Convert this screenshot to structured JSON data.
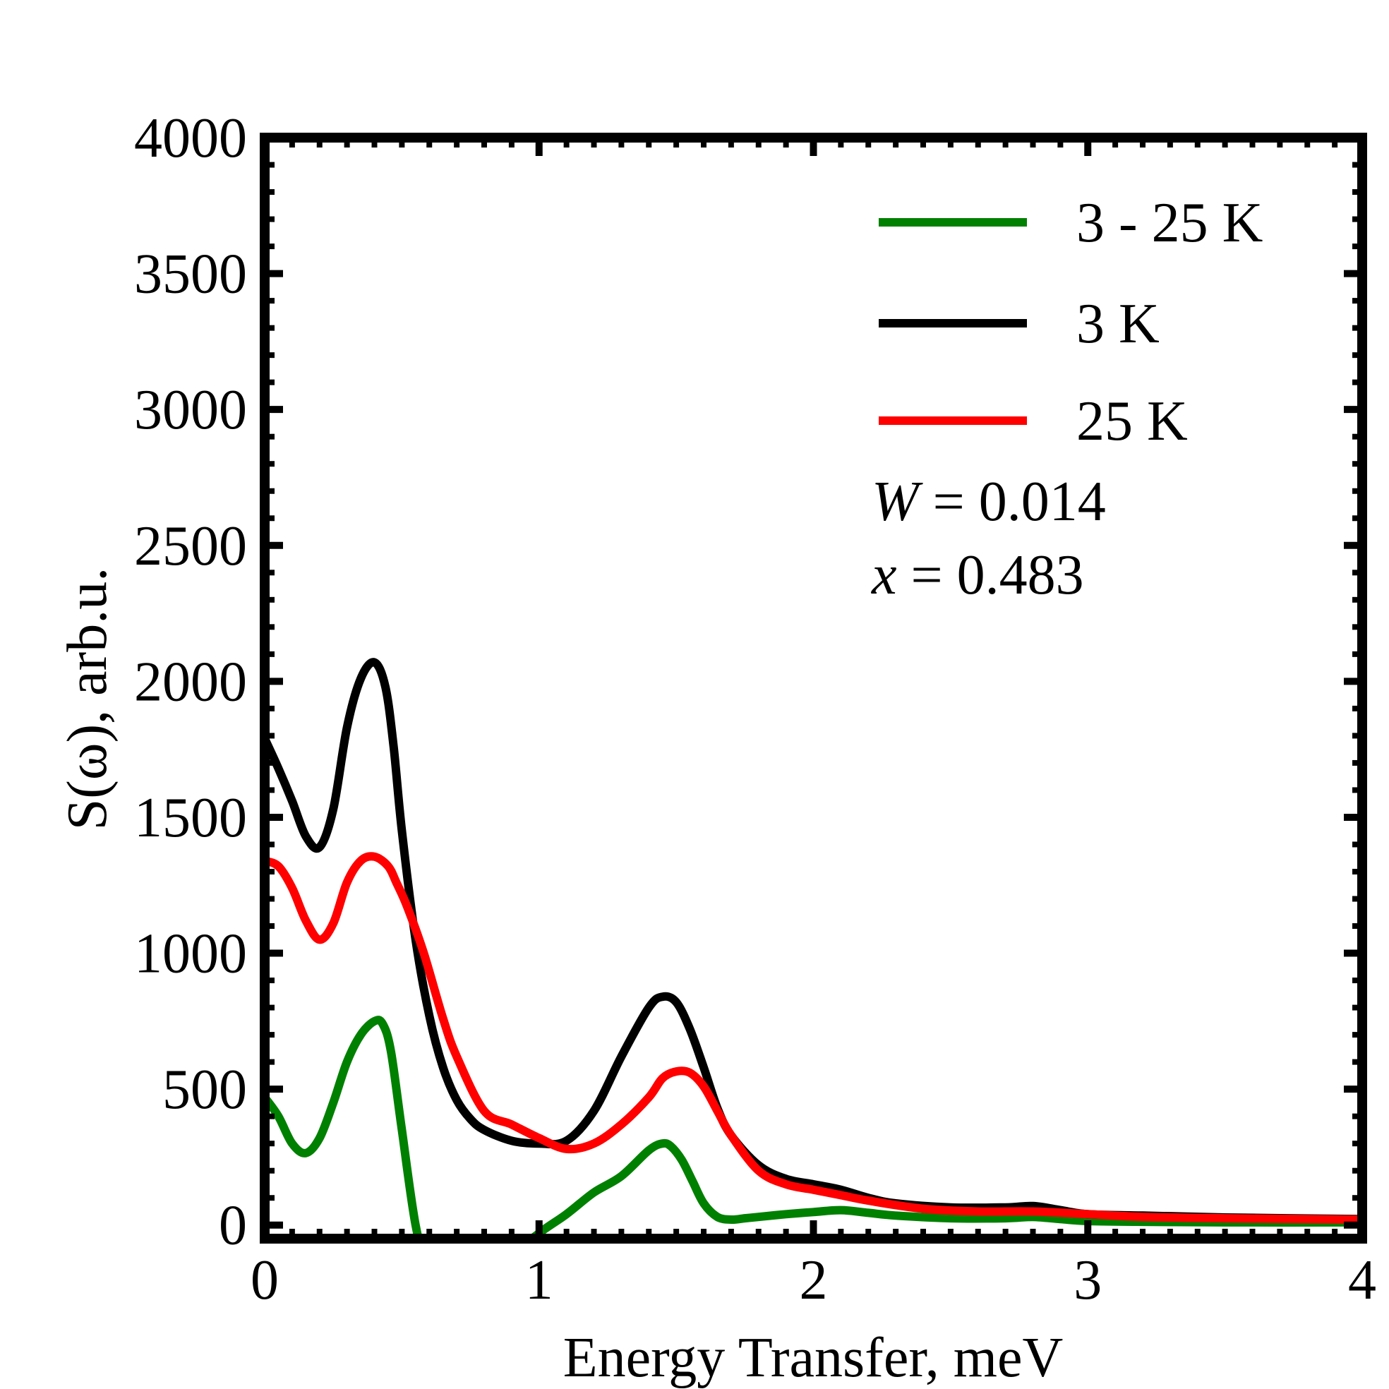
{
  "chart_data": {
    "type": "line",
    "xlabel": "Energy Transfer, meV",
    "ylabel": "S(ω), arb.u.",
    "xlim": [
      0,
      4
    ],
    "ylim": [
      -50,
      4000
    ],
    "x_ticks": [
      "0",
      "1",
      "2",
      "3",
      "4"
    ],
    "y_ticks": [
      "0",
      "500",
      "1000",
      "1500",
      "2000",
      "2500",
      "3000",
      "3500",
      "4000"
    ],
    "grid": false,
    "legend_position": "top-right",
    "annotations": {
      "w_label": "W",
      "w_value": " = 0.014",
      "x_label": "x",
      "x_value": " = 0.483"
    },
    "series": [
      {
        "name": "3 - 25 K",
        "color": "#008000",
        "x": [
          0.0,
          0.05,
          0.1,
          0.15,
          0.2,
          0.25,
          0.3,
          0.35,
          0.4,
          0.43,
          0.46,
          0.5,
          0.55,
          0.6,
          0.62,
          0.65,
          0.7,
          0.8,
          0.9,
          1.0,
          1.1,
          1.2,
          1.3,
          1.4,
          1.45,
          1.48,
          1.52,
          1.56,
          1.6,
          1.65,
          1.7,
          1.75,
          1.8,
          1.9,
          2.0,
          2.1,
          2.2,
          2.3,
          2.5,
          2.7,
          2.8,
          2.9,
          3.0,
          3.2,
          3.5,
          4.0
        ],
        "y": [
          470,
          400,
          300,
          265,
          320,
          450,
          600,
          700,
          750,
          740,
          640,
          350,
          0,
          -190,
          -250,
          -300,
          -350,
          -300,
          -120,
          -30,
          40,
          120,
          180,
          275,
          300,
          290,
          240,
          160,
          80,
          30,
          20,
          25,
          30,
          40,
          48,
          55,
          45,
          35,
          25,
          25,
          30,
          22,
          15,
          12,
          10,
          10
        ]
      },
      {
        "name": "3 K",
        "color": "#000000",
        "x": [
          0.0,
          0.05,
          0.1,
          0.15,
          0.2,
          0.25,
          0.3,
          0.35,
          0.4,
          0.44,
          0.47,
          0.5,
          0.55,
          0.6,
          0.65,
          0.7,
          0.75,
          0.8,
          0.9,
          1.0,
          1.1,
          1.2,
          1.3,
          1.4,
          1.45,
          1.5,
          1.55,
          1.6,
          1.65,
          1.7,
          1.8,
          1.9,
          2.0,
          2.1,
          2.2,
          2.3,
          2.5,
          2.7,
          2.8,
          2.9,
          3.0,
          3.2,
          3.5,
          4.0
        ],
        "y": [
          1790,
          1680,
          1560,
          1430,
          1390,
          1530,
          1830,
          2010,
          2070,
          1980,
          1760,
          1450,
          1050,
          770,
          580,
          460,
          390,
          350,
          310,
          300,
          310,
          420,
          620,
          800,
          840,
          820,
          720,
          580,
          430,
          330,
          220,
          170,
          150,
          130,
          100,
          80,
          65,
          65,
          70,
          55,
          40,
          35,
          28,
          22
        ]
      },
      {
        "name": "25 K",
        "color": "#ff0000",
        "x": [
          0.0,
          0.05,
          0.1,
          0.15,
          0.2,
          0.25,
          0.3,
          0.35,
          0.4,
          0.45,
          0.48,
          0.52,
          0.58,
          0.65,
          0.7,
          0.8,
          0.9,
          1.0,
          1.1,
          1.2,
          1.3,
          1.4,
          1.45,
          1.5,
          1.55,
          1.6,
          1.65,
          1.7,
          1.8,
          1.9,
          2.0,
          2.1,
          2.2,
          2.4,
          2.6,
          2.8,
          3.0,
          3.2,
          3.5,
          4.0
        ],
        "y": [
          1340,
          1320,
          1240,
          1120,
          1050,
          1110,
          1260,
          1340,
          1355,
          1320,
          1260,
          1170,
          1000,
          760,
          620,
          420,
          370,
          320,
          280,
          300,
          370,
          470,
          540,
          565,
          560,
          510,
          420,
          330,
          200,
          150,
          130,
          110,
          90,
          60,
          50,
          50,
          40,
          30,
          25,
          20
        ]
      }
    ]
  }
}
